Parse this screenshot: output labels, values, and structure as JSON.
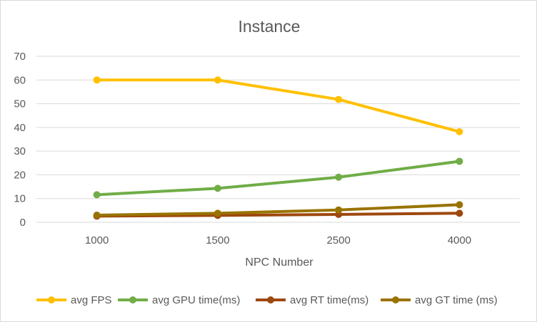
{
  "chart_data": {
    "type": "line",
    "title": "Instance",
    "xlabel": "NPC Number",
    "ylabel": "",
    "categories": [
      "1000",
      "1500",
      "2500",
      "4000"
    ],
    "ylim": [
      0,
      70
    ],
    "yticks": [
      0,
      10,
      20,
      30,
      40,
      50,
      60,
      70
    ],
    "grid": true,
    "legend_position": "bottom",
    "series": [
      {
        "name": "avg FPS",
        "color": "#FFC000",
        "values": [
          60,
          60,
          51.8,
          38.2
        ]
      },
      {
        "name": "avg GPU time(ms)",
        "color": "#70AD47",
        "values": [
          11.6,
          14.3,
          19,
          25.7
        ]
      },
      {
        "name": "avg RT time(ms)",
        "color": "#9E480E",
        "values": [
          2.6,
          2.9,
          3.3,
          3.8
        ]
      },
      {
        "name": "avg GT time (ms)",
        "color": "#997300",
        "values": [
          3,
          3.8,
          5.2,
          7.4
        ]
      }
    ]
  }
}
